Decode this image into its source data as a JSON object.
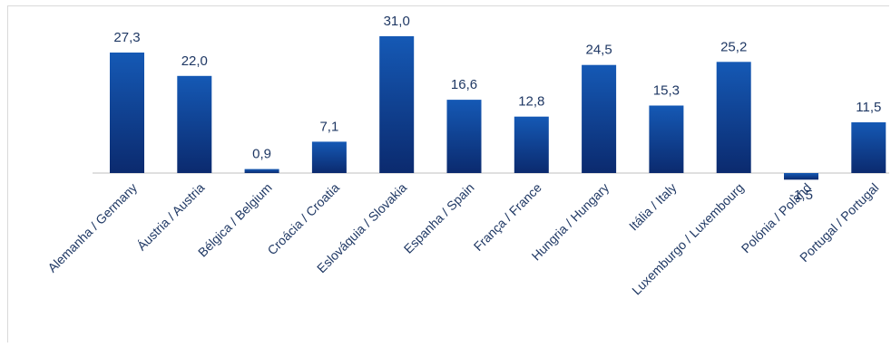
{
  "chart_data": {
    "type": "bar",
    "categories": [
      "Alemanha / Germany",
      "Áustria / Austria",
      "Bélgica / Belgium",
      "Croácia / Croatia",
      "Eslováquia / Slovakia",
      "Espanha / Spain",
      "França / France",
      "Hungria / Hungary",
      "Itália / Italy",
      "Luxemburgo / Luxembourg",
      "Polónia / Poland",
      "Portugal / Portugal"
    ],
    "values": [
      27.3,
      22.0,
      0.9,
      7.1,
      31.0,
      16.6,
      12.8,
      24.5,
      15.3,
      25.2,
      -1.5,
      11.5
    ],
    "value_labels": [
      "27,3",
      "22,0",
      "0,9",
      "7,1",
      "31,0",
      "16,6",
      "12,8",
      "24,5",
      "15,3",
      "25,2",
      "-1,5",
      "11,5"
    ],
    "title": "",
    "xlabel": "",
    "ylabel": "",
    "ylim": [
      -1.5,
      31.0
    ],
    "grid": false,
    "legend": "none",
    "colors": {
      "bar_top": "#1559b5",
      "bar_bottom": "#0b2a6e",
      "axis": "#bfbfbf",
      "text": "#1f3864"
    }
  }
}
